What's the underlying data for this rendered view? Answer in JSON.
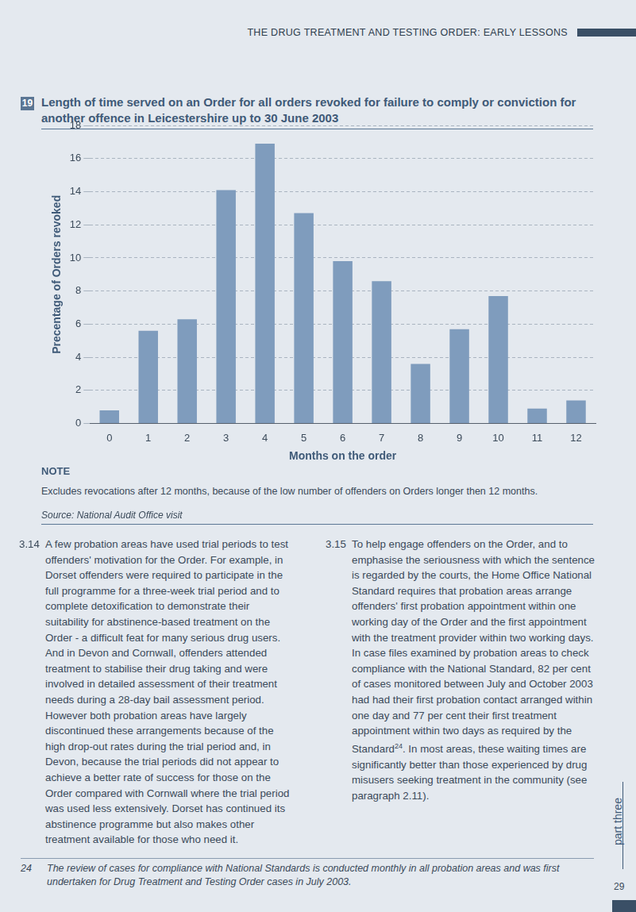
{
  "header": "THE DRUG TREATMENT AND TESTING ORDER: EARLY LESSONS",
  "figure_number": "19",
  "chart_data": {
    "type": "bar",
    "title": "Length of time served on an Order for all orders revoked for failure to comply or conviction for another offence in Leicestershire up to 30 June 2003",
    "x_label": "Months on the order",
    "y_label": "Precentage of Orders revoked",
    "categories": [
      "0",
      "1",
      "2",
      "3",
      "4",
      "5",
      "6",
      "7",
      "8",
      "9",
      "10",
      "11",
      "12"
    ],
    "values": [
      0.8,
      5.6,
      6.3,
      14.1,
      16.9,
      12.7,
      9.8,
      8.6,
      3.6,
      5.7,
      7.7,
      0.9,
      1.4
    ],
    "color": "#7f9cbd",
    "ylim": [
      0,
      18
    ],
    "yticks": [
      0,
      2,
      4,
      6,
      8,
      10,
      12,
      14,
      16,
      18
    ],
    "grid": true
  },
  "note": {
    "heading": "NOTE",
    "text": "Excludes revocations after 12 months, because of the low number of offenders on Orders longer then 12 months."
  },
  "source": "Source: National Audit Office visit",
  "paragraphs": [
    {
      "number": "3.14",
      "text": "A few probation areas have used trial periods to test offenders' motivation for the Order. For example, in Dorset offenders were required to participate in the full programme for a three-week trial period and to complete detoxification to demonstrate their suitability for abstinence-based treatment on the Order - a difficult feat for many serious drug users. And in Devon and Cornwall, offenders attended treatment to stabilise their drug taking and were involved in detailed assessment of their treatment needs during a 28-day bail assessment period. However both probation areas have largely discontinued these arrangements because of the high drop-out rates during the trial period and, in Devon, because the trial periods did not appear to achieve a better rate of success for those on the Order compared with Cornwall where the trial period was used less extensively. Dorset has continued its abstinence programme but also makes other treatment available for those who need it."
    },
    {
      "number": "3.15",
      "text": "To help engage offenders on the Order, and to emphasise the seriousness with which the sentence is regarded by the courts, the Home Office National Standard requires that probation areas arrange offenders' first probation appointment within one working day of the Order and the first appointment with the treatment provider within two working days. In case files examined by probation areas to check compliance with the National Standard, 82 per cent of cases monitored between July and October 2003 had had their first probation contact arranged within one day and 77 per cent their first treatment appointment within two days as required by the Standard",
      "footnote_ref": "24",
      "text_after_ref": ". In most areas, these waiting times are significantly better than those experienced by drug misusers seeking treatment in the community (see paragraph 2.11)."
    }
  ],
  "footnote": {
    "number": "24",
    "text": "The review of cases for compliance with National Standards is conducted monthly in all probation areas and was first undertaken for Drug Treatment and Testing Order cases in July 2003."
  },
  "section_tab": "part three",
  "page_number": "29"
}
